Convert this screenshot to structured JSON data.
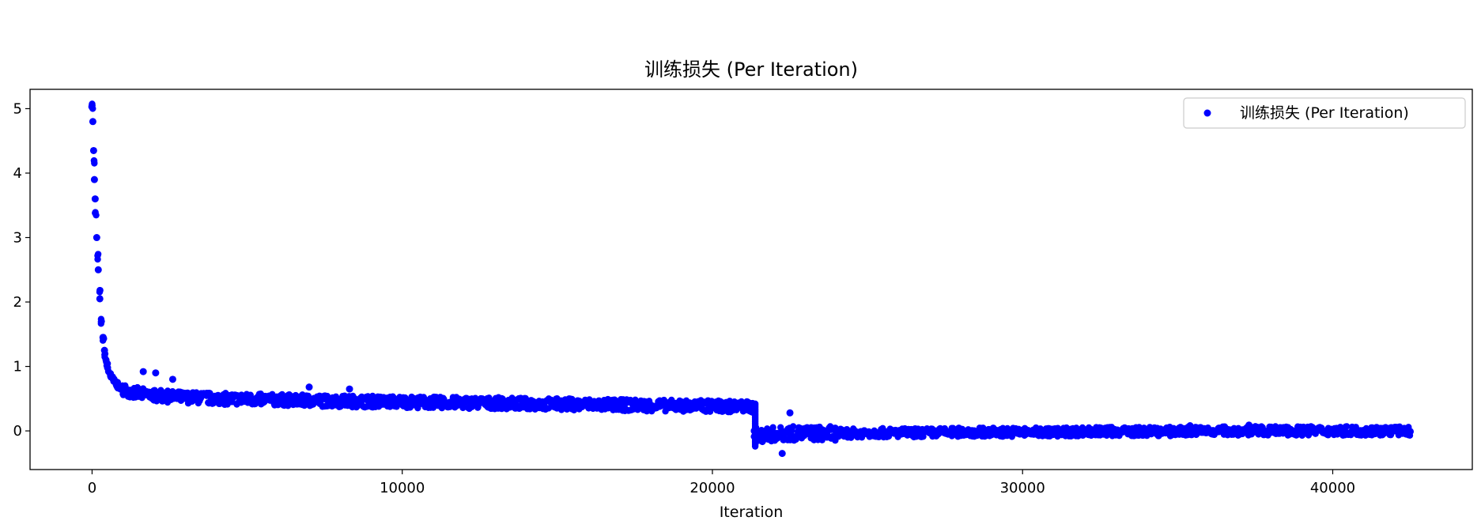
{
  "chart_data": {
    "type": "scatter",
    "title": "训练损失 (Per Iteration)",
    "xlabel": "Iteration",
    "ylabel": "",
    "xlim": [
      -2000,
      44500
    ],
    "ylim": [
      -0.6,
      5.3
    ],
    "xticks": [
      0,
      10000,
      20000,
      30000,
      40000
    ],
    "xtick_labels": [
      "0",
      "10000",
      "20000",
      "30000",
      "40000"
    ],
    "yticks": [
      0,
      1,
      2,
      3,
      4,
      5
    ],
    "ytick_labels": [
      "0",
      "1",
      "2",
      "3",
      "4",
      "5"
    ],
    "grid": false,
    "legend_position": "upper right",
    "marker_color": "#0000ff",
    "series": [
      {
        "name": "训练损失 (Per Iteration)",
        "x": [
          0,
          25,
          50,
          75,
          100,
          150,
          200,
          250,
          300,
          350,
          400,
          450,
          500,
          600,
          700,
          800,
          900,
          1000,
          1200,
          1400,
          1600,
          1800,
          2000,
          2500,
          3000,
          3500,
          4000,
          5000,
          6000,
          7000,
          8000,
          9000,
          10000,
          11000,
          12000,
          13000,
          14000,
          15000,
          16000,
          17000,
          18000,
          19000,
          20000,
          20500,
          21000,
          21300,
          21350,
          21400,
          21500,
          21700,
          22000,
          22200,
          22500,
          23000,
          24000,
          25000,
          26000,
          27000,
          28000,
          29000,
          30000,
          31000,
          32000,
          33000,
          34000,
          35000,
          36000,
          37000,
          38000,
          39000,
          40000,
          41000,
          42000,
          42500,
          1650,
          2050,
          2600,
          7000,
          8300,
          22250,
          22500,
          35400,
          37300,
          38500
        ],
        "y": [
          5.05,
          4.8,
          4.35,
          3.9,
          3.6,
          3.0,
          2.5,
          2.05,
          1.7,
          1.45,
          1.25,
          1.1,
          0.98,
          0.85,
          0.77,
          0.72,
          0.68,
          0.65,
          0.61,
          0.59,
          0.57,
          0.56,
          0.55,
          0.53,
          0.52,
          0.51,
          0.5,
          0.49,
          0.48,
          0.47,
          0.46,
          0.455,
          0.45,
          0.44,
          0.435,
          0.43,
          0.42,
          0.415,
          0.41,
          0.4,
          0.395,
          0.39,
          0.385,
          0.38,
          0.375,
          0.37,
          0.0,
          -0.05,
          -0.08,
          -0.06,
          -0.05,
          -0.05,
          -0.04,
          -0.04,
          -0.04,
          -0.03,
          -0.03,
          -0.03,
          -0.02,
          -0.02,
          -0.02,
          -0.02,
          -0.01,
          -0.01,
          -0.01,
          -0.01,
          0.0,
          0.0,
          0.0,
          0.0,
          0.0,
          0.0,
          0.0,
          -0.01,
          0.92,
          0.9,
          0.8,
          0.68,
          0.65,
          -0.35,
          0.28,
          0.08,
          0.09,
          0.06
        ]
      }
    ]
  }
}
